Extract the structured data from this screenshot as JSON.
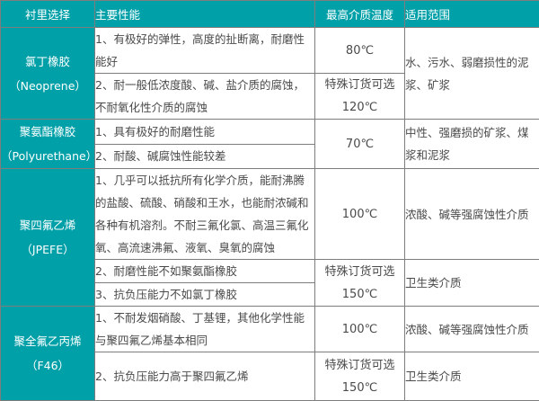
{
  "colors": {
    "accent_teal": "#00a0a8",
    "solid_border": "#7d7d7d",
    "dashed_border": "#c8c8c8",
    "body_text": "#4a4a4a",
    "header_text": "#ffffff"
  },
  "table": {
    "headers": {
      "lining": "衬里选择",
      "performance": "主要性能",
      "max_temp": "最高介质温度",
      "application": "适用范围"
    },
    "groups": [
      {
        "material": {
          "name": "氯丁橡胶",
          "en": "（Neoprene）"
        },
        "perfs": [
          "1、有极好的弹性，高度的扯断离，耐磨性能好",
          "2、耐一般低浓度酸、碱、盐介质的腐蚀，不耐氧化性介质的腐蚀"
        ],
        "temps": [
          [
            "80℃"
          ],
          [
            "特殊订货可选",
            "120℃"
          ]
        ],
        "ranges": [
          "水、污水、弱磨损性的泥浆、矿浆"
        ]
      },
      {
        "material": {
          "name": "聚氨酯橡胶",
          "en": "（Polyurethane）"
        },
        "perfs": [
          "1、具有极好的耐磨性能",
          "2、耐酸、碱腐蚀性能较差"
        ],
        "temps": [
          [
            "70℃"
          ]
        ],
        "ranges": [
          "中性、强磨损的矿浆、煤浆和泥浆"
        ]
      },
      {
        "material": {
          "name": "聚四氟乙烯",
          "en": "（JPEFE）"
        },
        "perfs": [
          "1、几乎可以抵抗所有化学介质，能耐沸腾的盐酸、硫酸、硝酸和王水，也能耐浓碱和各种有机溶剂。不耐三氟化氯、高温三氟化氧、高流速沸氟、液氧、臭氧的腐蚀",
          "2、耐磨性能不如聚氨酯橡胶",
          "3、抗负压能力不如氯丁橡胶"
        ],
        "temps": [
          [
            "100℃"
          ],
          [
            "特殊订货可选",
            "150℃"
          ]
        ],
        "ranges": [
          "浓酸、碱等强腐蚀性介质",
          "卫生类介质"
        ]
      },
      {
        "material": {
          "name": "聚全氟乙丙烯",
          "en": "（F46）"
        },
        "perfs": [
          "1、不耐发烟硝酸、丁基锂，其他化学性能与聚四氟乙烯基本相同",
          "2、抗负压能力高于聚四氟乙烯"
        ],
        "temps": [
          [
            "100℃"
          ],
          [
            "特殊订货可选",
            "150℃"
          ]
        ],
        "ranges": [
          "浓酸、碱等强腐蚀性介质",
          "卫生类介质"
        ]
      }
    ]
  }
}
